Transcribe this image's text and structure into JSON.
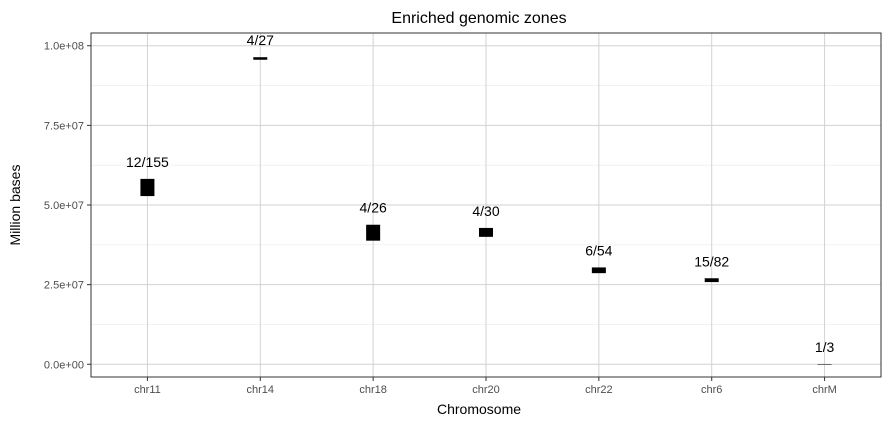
{
  "chart_data": {
    "type": "bar",
    "title": "Enriched genomic zones",
    "xlabel": "Chromosome",
    "ylabel": "Million bases",
    "categories": [
      "chr11",
      "chr14",
      "chr18",
      "chr20",
      "chr22",
      "chr6",
      "chrM"
    ],
    "ylim": [
      -4000000,
      104000000
    ],
    "yticks": [
      0,
      25000000,
      50000000,
      75000000,
      100000000
    ],
    "ytick_labels": [
      "0.0e+00",
      "2.5e+07",
      "5.0e+07",
      "7.5e+07",
      "1.0e+08"
    ],
    "grid": true,
    "series": [
      {
        "zones": [
          {
            "category": "chr11",
            "start": 52800000,
            "end": 58200000,
            "label": "12/155"
          },
          {
            "category": "chr14",
            "start": 95600000,
            "end": 96400000,
            "label": "4/27"
          },
          {
            "category": "chr18",
            "start": 38800000,
            "end": 43800000,
            "label": "4/26"
          },
          {
            "category": "chr20",
            "start": 40000000,
            "end": 42800000,
            "label": "4/30"
          },
          {
            "category": "chr22",
            "start": 28600000,
            "end": 30400000,
            "label": "6/54"
          },
          {
            "category": "chr6",
            "start": 25800000,
            "end": 27000000,
            "label": "15/82"
          },
          {
            "category": "chrM",
            "start": 0,
            "end": 16569,
            "label": "1/3"
          }
        ]
      }
    ]
  }
}
